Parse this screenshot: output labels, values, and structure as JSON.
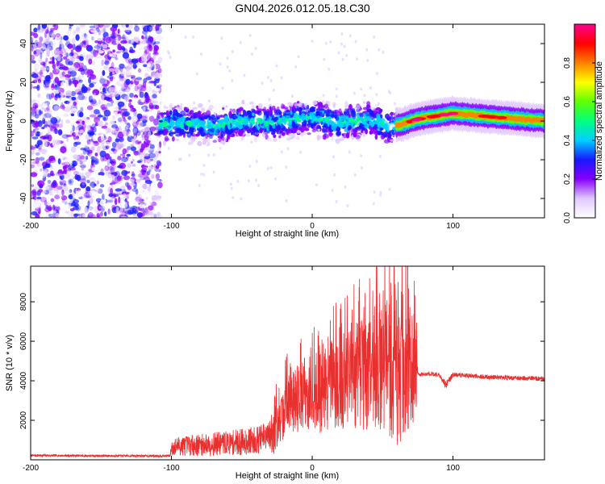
{
  "title": "GN04.2026.012.05.18.C30",
  "chart_data": [
    {
      "type": "heatmap",
      "name": "spectrogram",
      "xlabel": "Height of straight line (km)",
      "ylabel": "Frequency (Hz)",
      "xlim": [
        -200,
        165
      ],
      "ylim": [
        -50,
        50
      ],
      "xticks": [
        -200,
        -100,
        0,
        100
      ],
      "yticks": [
        -40,
        -20,
        0,
        20,
        40
      ],
      "colorbar": {
        "label": "Normalized spectral amplitude",
        "range": [
          0.0,
          1.0
        ],
        "ticks": [
          0.0,
          0.2,
          0.4,
          0.6,
          0.8
        ],
        "tick_labels": [
          "0.0",
          "0.2",
          "0.4",
          "0.6",
          "0.8"
        ],
        "colors": [
          "#ffffff",
          "#e0c8ff",
          "#8800ff",
          "#1818ff",
          "#00d0ff",
          "#00ff80",
          "#60ff00",
          "#ffff00",
          "#ff8000",
          "#ff0000",
          "#ff0090"
        ]
      },
      "regions": [
        {
          "x": [
            -200,
            -108
          ],
          "y": [
            -50,
            50
          ],
          "level": 0.25,
          "description_values": "broadband noise"
        },
        {
          "x": [
            -108,
            60
          ],
          "y": [
            -10,
            8
          ],
          "level": 0.35
        },
        {
          "x": [
            60,
            165
          ],
          "y": [
            -3,
            5
          ],
          "level": 0.9
        }
      ],
      "ridge": {
        "x": [
          -108,
          -90,
          -70,
          -50,
          -30,
          -10,
          0,
          20,
          40,
          55,
          62,
          75,
          100,
          130,
          165
        ],
        "y": [
          -2,
          -1,
          -3,
          0,
          -1,
          1,
          2,
          -1,
          1,
          -3,
          -2,
          1,
          4,
          2,
          0
        ]
      }
    },
    {
      "type": "line",
      "name": "snr",
      "xlabel": "Height of straight line (km)",
      "ylabel": "SNR (10 * v/v)",
      "xlim": [
        -200,
        165
      ],
      "ylim": [
        0,
        9800
      ],
      "xticks": [
        -200,
        -100,
        0,
        100
      ],
      "yticks": [
        2000,
        4000,
        6000,
        8000
      ],
      "color": "#e8302f",
      "series": [
        {
          "name": "SNR",
          "x": [
            -200,
            -150,
            -101,
            -100,
            -95,
            -80,
            -70,
            -60,
            -50,
            -40,
            -30,
            -27,
            -25,
            -20,
            -18,
            -10,
            0,
            10,
            20,
            30,
            40,
            50,
            55,
            60,
            65,
            70,
            74,
            75,
            80,
            90,
            95,
            100,
            120,
            140,
            165
          ],
          "y": [
            220,
            200,
            200,
            600,
            700,
            750,
            800,
            850,
            900,
            1000,
            1200,
            2000,
            1600,
            2300,
            3000,
            3200,
            3300,
            3600,
            4000,
            4200,
            4400,
            4700,
            5000,
            4600,
            4800,
            5200,
            4700,
            4300,
            4350,
            4300,
            3800,
            4300,
            4200,
            4150,
            4100
          ],
          "amp": [
            60,
            60,
            60,
            400,
            500,
            550,
            600,
            600,
            700,
            700,
            800,
            1800,
            1000,
            1200,
            1600,
            1800,
            2000,
            2200,
            2500,
            2700,
            2900,
            3200,
            3800,
            4000,
            4000,
            3500,
            3000,
            120,
            120,
            120,
            200,
            120,
            120,
            120,
            120
          ]
        }
      ]
    }
  ]
}
